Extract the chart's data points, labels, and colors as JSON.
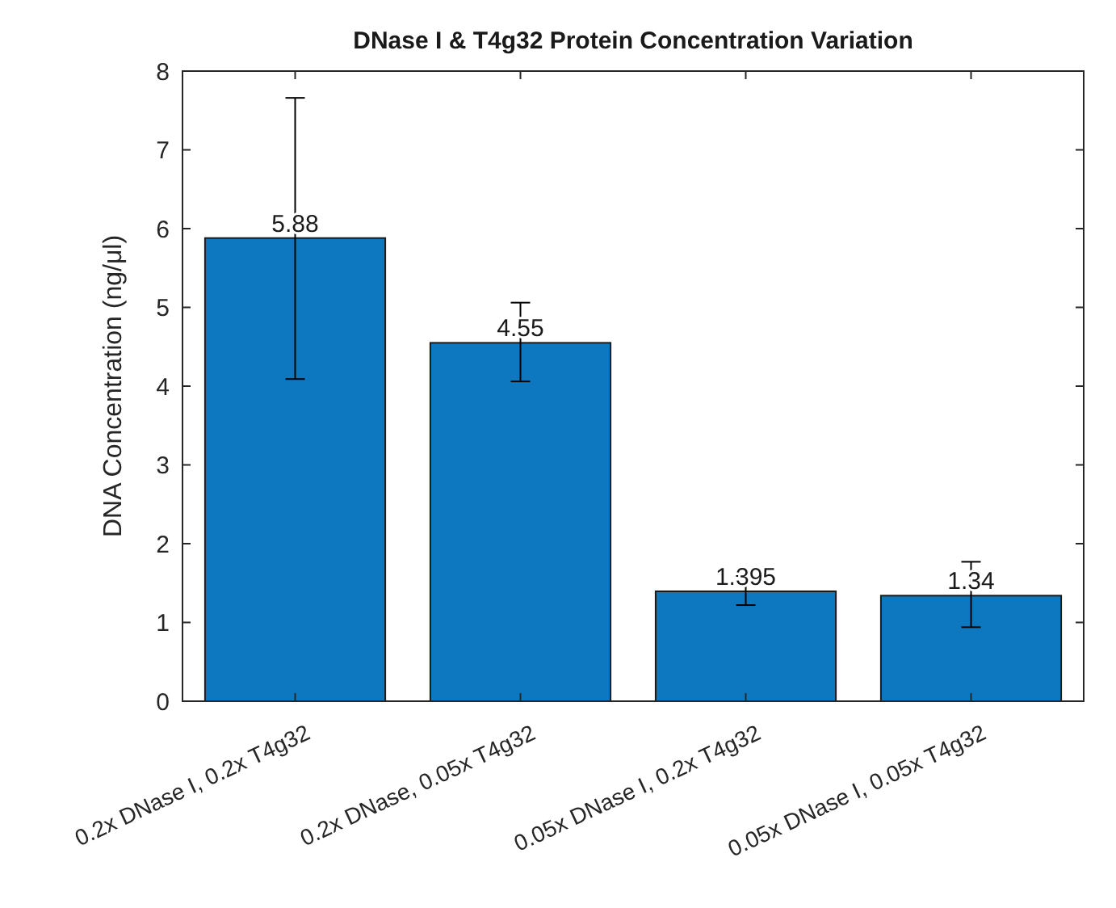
{
  "chart_data": {
    "type": "bar",
    "title": "DNase I & T4g32 Protein Concentration Variation",
    "ylabel": "DNA Concentration (ng/μl)",
    "categories": [
      "0.2x DNase I, 0.2x T4g32",
      "0.2x DNase, 0.05x T4g32",
      "0.05x DNase I, 0.2x T4g32",
      "0.05x DNase I, 0.05x T4g32"
    ],
    "values": [
      5.88,
      4.55,
      1.395,
      1.34
    ],
    "errors": [
      [
        4.09,
        7.66
      ],
      [
        4.06,
        5.06
      ],
      [
        1.22,
        1.59
      ],
      [
        0.94,
        1.77
      ]
    ],
    "color": "#0d78c0",
    "data_labels": true,
    "ylim": [
      0,
      8
    ],
    "yticks": [
      0,
      1,
      2,
      3,
      4,
      5,
      6,
      7,
      8
    ],
    "grid": false
  }
}
